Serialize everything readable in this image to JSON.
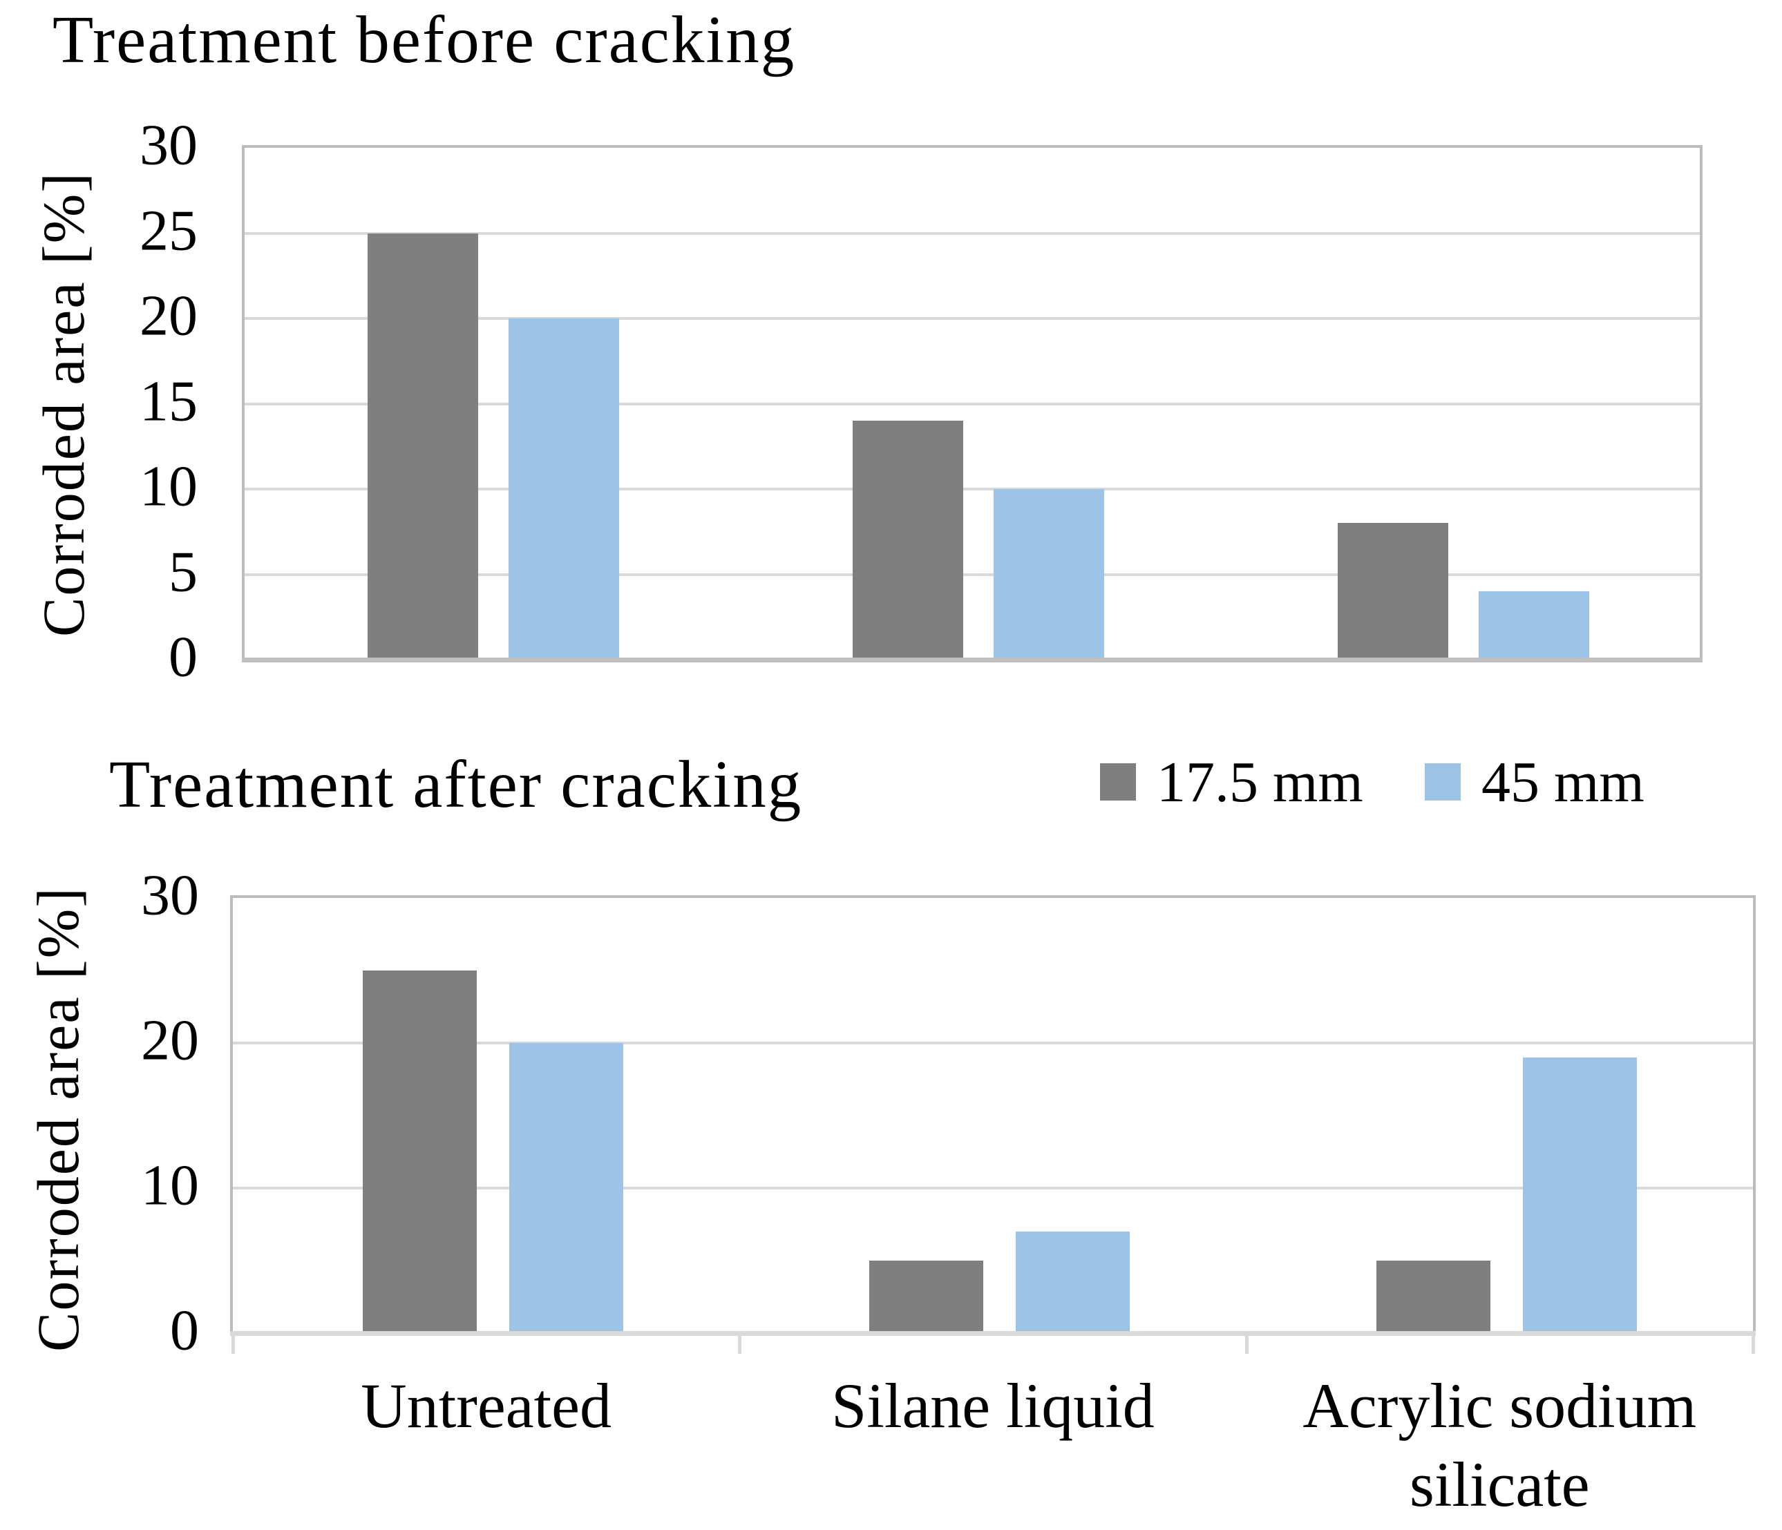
{
  "figure": {
    "background": "#FFFFFF"
  },
  "colors": {
    "series_17_5mm": "#7F7F7F",
    "series_45mm": "#9DC3E6",
    "gridline": "#D9D9D9",
    "plot_border": "#BCBCBC",
    "axis_line_chart1": "#BFBFBF",
    "axis_line_chart2": "#D9D9D9",
    "text": "#000000"
  },
  "legend": {
    "items": [
      {
        "label": "17.5 mm",
        "series": "series_17_5mm"
      },
      {
        "label": "45 mm",
        "series": "series_45mm"
      }
    ]
  },
  "chart_data": [
    {
      "type": "bar",
      "title": "Treatment before cracking",
      "ylabel": "Corroded area [%]",
      "xlabel": "",
      "categories": [
        "Untreated",
        "Silane liquid",
        "Acrylic sodium silicate"
      ],
      "series": [
        {
          "name": "17.5 mm",
          "values": [
            25,
            14,
            8
          ]
        },
        {
          "name": "45 mm",
          "values": [
            20,
            10,
            4
          ]
        }
      ],
      "ylim": [
        0,
        30
      ],
      "yticks": [
        0,
        5,
        10,
        15,
        20,
        25,
        30
      ],
      "grid": true,
      "category_labels_shown": false,
      "legend_position": "shared-between-charts"
    },
    {
      "type": "bar",
      "title": "Treatment after cracking",
      "ylabel": "Corroded area [%]",
      "xlabel": "",
      "categories": [
        "Untreated",
        "Silane liquid",
        "Acrylic sodium silicate"
      ],
      "series": [
        {
          "name": "17.5 mm",
          "values": [
            25,
            5,
            5
          ]
        },
        {
          "name": "45 mm",
          "values": [
            20,
            7,
            19
          ]
        }
      ],
      "ylim": [
        0,
        30
      ],
      "yticks": [
        0,
        10,
        20,
        30
      ],
      "grid": true,
      "category_labels_shown": true,
      "legend_position": "shared-between-charts"
    }
  ]
}
